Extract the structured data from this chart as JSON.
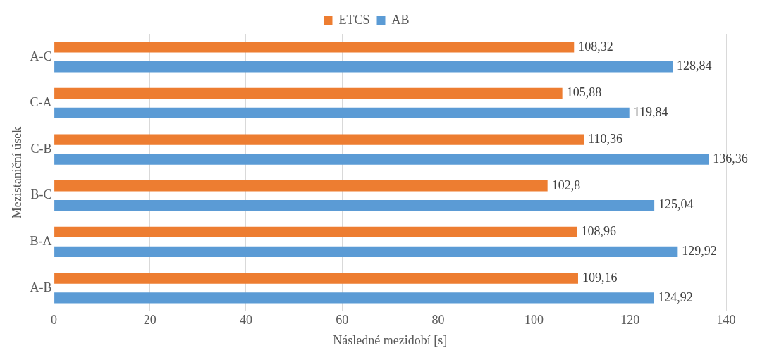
{
  "chart_data": {
    "type": "bar",
    "orientation": "horizontal",
    "xlabel": "Následné mezidobí [s]",
    "ylabel": "Mezistaniční úsek",
    "categories": [
      "A-C",
      "C-A",
      "C-B",
      "B-C",
      "B-A",
      "A-B"
    ],
    "series": [
      {
        "name": "ETCS",
        "color": "#ed7d31",
        "values": [
          108.32,
          105.88,
          110.36,
          102.8,
          108.96,
          109.16
        ],
        "value_labels": [
          "108,32",
          "105,88",
          "110,36",
          "102,8",
          "108,96",
          "109,16"
        ]
      },
      {
        "name": "AB",
        "color": "#5b9bd5",
        "values": [
          128.84,
          119.84,
          136.36,
          125.04,
          129.92,
          124.92
        ],
        "value_labels": [
          "128,84",
          "119,84",
          "136,36",
          "125,04",
          "129,92",
          "124,92"
        ]
      }
    ],
    "xlim": [
      0,
      140
    ],
    "xticks": [
      0,
      20,
      40,
      60,
      80,
      100,
      120,
      140
    ],
    "grid": "x",
    "legend": "top"
  }
}
